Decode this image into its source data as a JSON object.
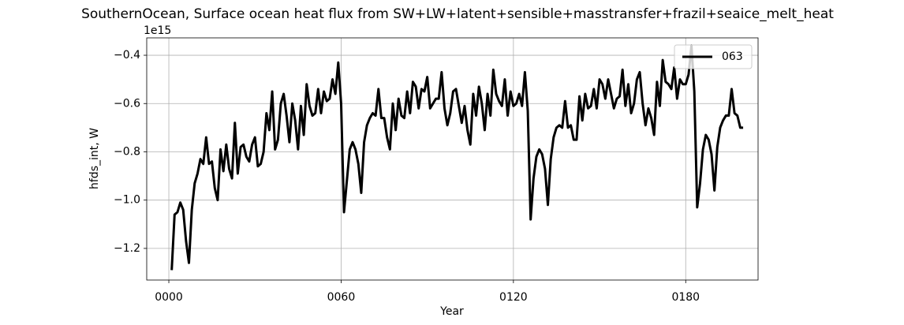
{
  "chart_data": {
    "type": "line",
    "title": "SouthernOcean, Surface ocean heat flux from SW+LW+latent+sensible+masstransfer+frazil+seaice_melt_heat",
    "x_label": "Year",
    "y_label": "hfds_int, W",
    "y_offset_label": "1e15",
    "x": [
      1,
      2,
      3,
      4,
      5,
      6,
      7,
      8,
      9,
      10,
      11,
      12,
      13,
      14,
      15,
      16,
      17,
      18,
      19,
      20,
      21,
      22,
      23,
      24,
      25,
      26,
      27,
      28,
      29,
      30,
      31,
      32,
      33,
      34,
      35,
      36,
      37,
      38,
      39,
      40,
      41,
      42,
      43,
      44,
      45,
      46,
      47,
      48,
      49,
      50,
      51,
      52,
      53,
      54,
      55,
      56,
      57,
      58,
      59,
      60,
      61,
      62,
      63,
      64,
      65,
      66,
      67,
      68,
      69,
      70,
      71,
      72,
      73,
      74,
      75,
      76,
      77,
      78,
      79,
      80,
      81,
      82,
      83,
      84,
      85,
      86,
      87,
      88,
      89,
      90,
      91,
      92,
      93,
      94,
      95,
      96,
      97,
      98,
      99,
      100,
      101,
      102,
      103,
      104,
      105,
      106,
      107,
      108,
      109,
      110,
      111,
      112,
      113,
      114,
      115,
      116,
      117,
      118,
      119,
      120,
      121,
      122,
      123,
      124,
      125,
      126,
      127,
      128,
      129,
      130,
      131,
      132,
      133,
      134,
      135,
      136,
      137,
      138,
      139,
      140,
      141,
      142,
      143,
      144,
      145,
      146,
      147,
      148,
      149,
      150,
      151,
      152,
      153,
      154,
      155,
      156,
      157,
      158,
      159,
      160,
      161,
      162,
      163,
      164,
      165,
      166,
      167,
      168,
      169,
      170,
      171,
      172,
      173,
      174,
      175,
      176,
      177,
      178,
      179,
      180,
      181,
      182,
      183,
      184,
      185,
      186,
      187,
      188,
      189,
      190,
      191,
      192,
      193,
      194,
      195,
      196,
      197,
      198,
      199,
      200
    ],
    "series": [
      {
        "name": "063",
        "color": "#000000",
        "values": [
          -1.29,
          -1.06,
          -1.05,
          -1.01,
          -1.04,
          -1.17,
          -1.26,
          -1.04,
          -0.93,
          -0.89,
          -0.83,
          -0.85,
          -0.74,
          -0.85,
          -0.84,
          -0.95,
          -1.0,
          -0.79,
          -0.88,
          -0.77,
          -0.87,
          -0.91,
          -0.68,
          -0.89,
          -0.78,
          -0.77,
          -0.82,
          -0.84,
          -0.77,
          -0.74,
          -0.86,
          -0.85,
          -0.8,
          -0.64,
          -0.71,
          -0.55,
          -0.79,
          -0.75,
          -0.6,
          -0.56,
          -0.65,
          -0.76,
          -0.6,
          -0.67,
          -0.79,
          -0.61,
          -0.73,
          -0.52,
          -0.61,
          -0.65,
          -0.64,
          -0.54,
          -0.64,
          -0.55,
          -0.59,
          -0.58,
          -0.5,
          -0.56,
          -0.43,
          -0.6,
          -1.05,
          -0.92,
          -0.79,
          -0.76,
          -0.79,
          -0.85,
          -0.97,
          -0.76,
          -0.69,
          -0.66,
          -0.64,
          -0.65,
          -0.54,
          -0.66,
          -0.66,
          -0.74,
          -0.79,
          -0.6,
          -0.71,
          -0.58,
          -0.65,
          -0.66,
          -0.55,
          -0.64,
          -0.51,
          -0.53,
          -0.62,
          -0.54,
          -0.55,
          -0.49,
          -0.62,
          -0.6,
          -0.58,
          -0.58,
          -0.47,
          -0.62,
          -0.69,
          -0.64,
          -0.55,
          -0.54,
          -0.61,
          -0.68,
          -0.61,
          -0.71,
          -0.77,
          -0.56,
          -0.65,
          -0.53,
          -0.6,
          -0.71,
          -0.56,
          -0.65,
          -0.46,
          -0.56,
          -0.59,
          -0.61,
          -0.5,
          -0.65,
          -0.55,
          -0.61,
          -0.6,
          -0.56,
          -0.61,
          -0.47,
          -0.63,
          -1.08,
          -0.91,
          -0.82,
          -0.79,
          -0.81,
          -0.87,
          -1.02,
          -0.83,
          -0.74,
          -0.7,
          -0.69,
          -0.7,
          -0.59,
          -0.7,
          -0.69,
          -0.75,
          -0.75,
          -0.57,
          -0.67,
          -0.56,
          -0.62,
          -0.61,
          -0.54,
          -0.62,
          -0.5,
          -0.52,
          -0.58,
          -0.5,
          -0.56,
          -0.62,
          -0.58,
          -0.57,
          -0.46,
          -0.61,
          -0.52,
          -0.64,
          -0.6,
          -0.5,
          -0.47,
          -0.6,
          -0.69,
          -0.62,
          -0.66,
          -0.73,
          -0.51,
          -0.61,
          -0.42,
          -0.51,
          -0.52,
          -0.54,
          -0.45,
          -0.58,
          -0.5,
          -0.52,
          -0.52,
          -0.48,
          -0.36,
          -0.55,
          -1.03,
          -0.93,
          -0.79,
          -0.73,
          -0.75,
          -0.81,
          -0.96,
          -0.78,
          -0.7,
          -0.67,
          -0.65,
          -0.65,
          -0.54,
          -0.64,
          -0.65,
          -0.7,
          -0.7
        ]
      }
    ],
    "xlim": [
      -7.7,
      205.2
    ],
    "xticks": [
      {
        "value": 0,
        "label": "0000"
      },
      {
        "value": 60,
        "label": "0060"
      },
      {
        "value": 120,
        "label": "0120"
      },
      {
        "value": 180,
        "label": "0180"
      }
    ],
    "ylim": [
      -1.331,
      -0.328
    ],
    "yticks": [
      {
        "value": -1.2,
        "label": "−1.2"
      },
      {
        "value": -1.0,
        "label": "−1.0"
      },
      {
        "value": -0.8,
        "label": "−0.8"
      },
      {
        "value": -0.6,
        "label": "−0.6"
      },
      {
        "value": -0.4,
        "label": "−0.4"
      }
    ],
    "grid": true,
    "legend": "upper right",
    "line_width": 3
  }
}
